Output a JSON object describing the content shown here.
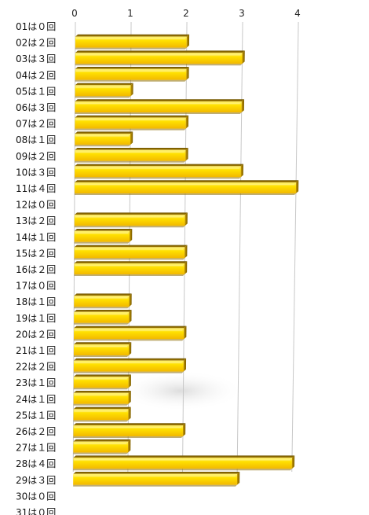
{
  "chart_data": {
    "type": "bar",
    "orientation": "horizontal",
    "style": "3d-perspective",
    "title": "",
    "xlabel": "",
    "ylabel": "",
    "categories": [
      "01は０回",
      "02は２回",
      "03は３回",
      "04は２回",
      "05は１回",
      "06は３回",
      "07は２回",
      "08は１回",
      "09は２回",
      "10は３回",
      "11は４回",
      "12は０回",
      "13は２回",
      "14は１回",
      "15は２回",
      "16は２回",
      "17は０回",
      "18は１回",
      "19は１回",
      "20は２回",
      "21は１回",
      "22は２回",
      "23は１回",
      "24は１回",
      "25は１回",
      "26は２回",
      "27は１回",
      "28は４回",
      "29は３回",
      "30は０回",
      "31は０回"
    ],
    "values": [
      0,
      2,
      3,
      2,
      1,
      3,
      2,
      1,
      2,
      3,
      4,
      0,
      2,
      1,
      2,
      2,
      0,
      1,
      1,
      2,
      1,
      2,
      1,
      1,
      1,
      2,
      1,
      4,
      3,
      0,
      0
    ],
    "xlim": [
      0,
      4
    ],
    "xticks": [
      "0",
      "1",
      "2",
      "3",
      "4"
    ],
    "xaxis_position": "top",
    "grid": true,
    "legend": "none",
    "bar_color": "#FFD400",
    "bar_shade_color": "#8A6A00",
    "bar_highlight_color": "#FFF27A"
  }
}
